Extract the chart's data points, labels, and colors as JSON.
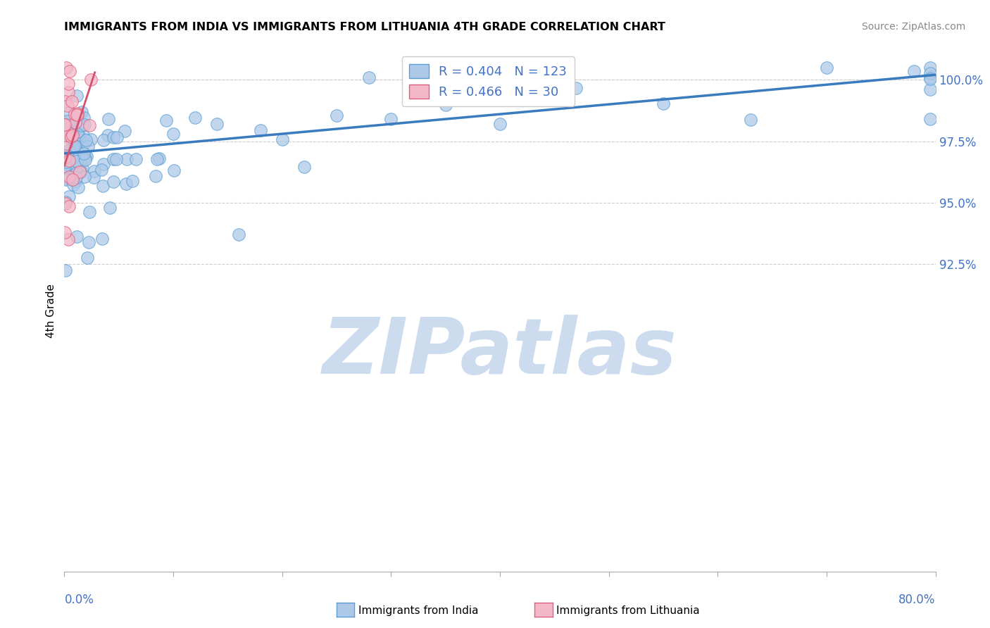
{
  "title": "IMMIGRANTS FROM INDIA VS IMMIGRANTS FROM LITHUANIA 4TH GRADE CORRELATION CHART",
  "source": "Source: ZipAtlas.com",
  "ylabel": "4th Grade",
  "xmin": 0.0,
  "xmax": 80.0,
  "ymin": 80.0,
  "ymax": 101.2,
  "yticks": [
    92.5,
    95.0,
    97.5,
    100.0
  ],
  "ytick_labels": [
    "92.5%",
    "95.0%",
    "97.5%",
    "100.0%"
  ],
  "india_color": "#aec9e8",
  "india_edge": "#5a9fd4",
  "lithuania_color": "#f4b8c8",
  "lithuania_edge": "#e06080",
  "india_R": 0.404,
  "india_N": 123,
  "lithuania_R": 0.466,
  "lithuania_N": 30,
  "india_line_color": "#3a7bbf",
  "lithuania_line_color": "#d45070",
  "tick_label_color": "#4472C4",
  "watermark": "ZIPatlas",
  "watermark_color": "#ccdcee",
  "legend_india": "Immigrants from India",
  "legend_lithuania": "Immigrants from Lithuania",
  "background": "#ffffff",
  "india_trend_x0": 0.0,
  "india_trend_y0": 97.0,
  "india_trend_x1": 80.0,
  "india_trend_y1": 100.2,
  "lith_trend_x0": 0.0,
  "lith_trend_y0": 96.5,
  "lith_trend_x1": 2.8,
  "lith_trend_y1": 100.3
}
